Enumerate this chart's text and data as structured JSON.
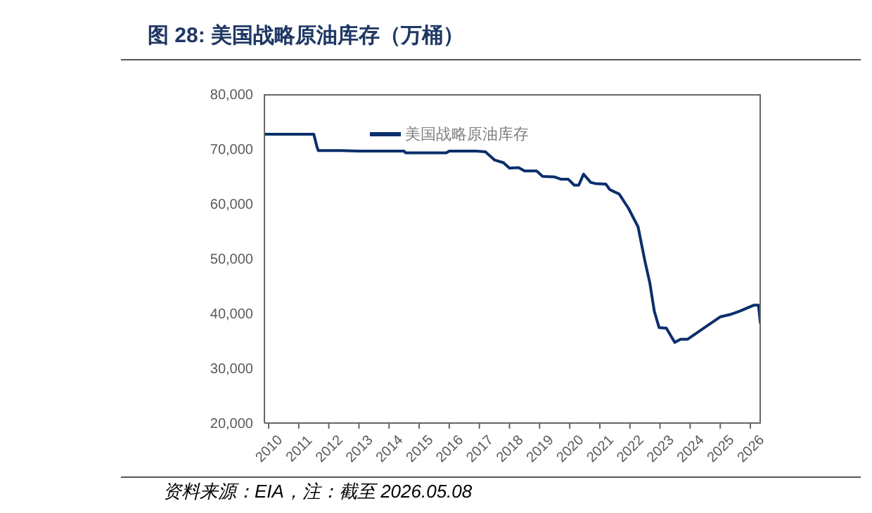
{
  "chart_data": {
    "type": "line",
    "title": "图 28:  美国战略原油库存（万桶）",
    "annotations": [
      "资料来源：EIA，注：截至 2026.05.08"
    ],
    "x": [
      2009.86,
      2010.5,
      2011,
      2011.5,
      2011.6,
      2011.65,
      2012.4,
      2013,
      2014,
      2014.5,
      2014.55,
      2015.4,
      2015.9,
      2016,
      2016.9,
      2017.2,
      2017.5,
      2017.8,
      2018,
      2018.3,
      2018.5,
      2018.9,
      2019.1,
      2019.5,
      2019.7,
      2019.95,
      2020.15,
      2020.3,
      2020.46,
      2020.7,
      2020.85,
      2021.2,
      2021.33,
      2021.48,
      2021.64,
      2021.95,
      2022.27,
      2022.5,
      2022.66,
      2022.81,
      2022.97,
      2023.21,
      2023.49,
      2023.68,
      2023.92,
      2024.47,
      2025.01,
      2025.33,
      2025.64,
      2026.11,
      2026.27,
      2026.33
    ],
    "series": [
      {
        "name": "美国战略原油库存",
        "color": "#0b2f6b",
        "values": [
          72700,
          72700,
          72700,
          72700,
          70500,
          69700,
          69700,
          69600,
          69600,
          69600,
          69300,
          69300,
          69300,
          69600,
          69600,
          69500,
          68000,
          67500,
          66500,
          66600,
          66000,
          66000,
          65000,
          64900,
          64500,
          64500,
          63400,
          63400,
          65400,
          63900,
          63700,
          63600,
          62600,
          62200,
          61800,
          59200,
          55800,
          49500,
          45600,
          40400,
          37400,
          37300,
          34700,
          35300,
          35300,
          37400,
          39400,
          39800,
          40400,
          41500,
          41500,
          38300
        ]
      }
    ],
    "xlim": [
      2009.86,
      2026.35
    ],
    "xticks": [
      2010,
      2011,
      2012,
      2013,
      2014,
      2015,
      2016,
      2017,
      2018,
      2019,
      2020,
      2021,
      2022,
      2023,
      2024,
      2025,
      2026
    ],
    "ylim": [
      20000,
      80000
    ],
    "yticks": [
      {
        "value": 20000,
        "label": "20,000"
      },
      {
        "value": 30000,
        "label": "30,000"
      },
      {
        "value": 40000,
        "label": "40,000"
      },
      {
        "value": 50000,
        "label": "50,000"
      },
      {
        "value": 60000,
        "label": "60,000"
      },
      {
        "value": 70000,
        "label": "70,000"
      },
      {
        "value": 80000,
        "label": "80,000"
      }
    ],
    "grid": false,
    "legend": "top left",
    "marker": "none",
    "line_style": "solid"
  }
}
